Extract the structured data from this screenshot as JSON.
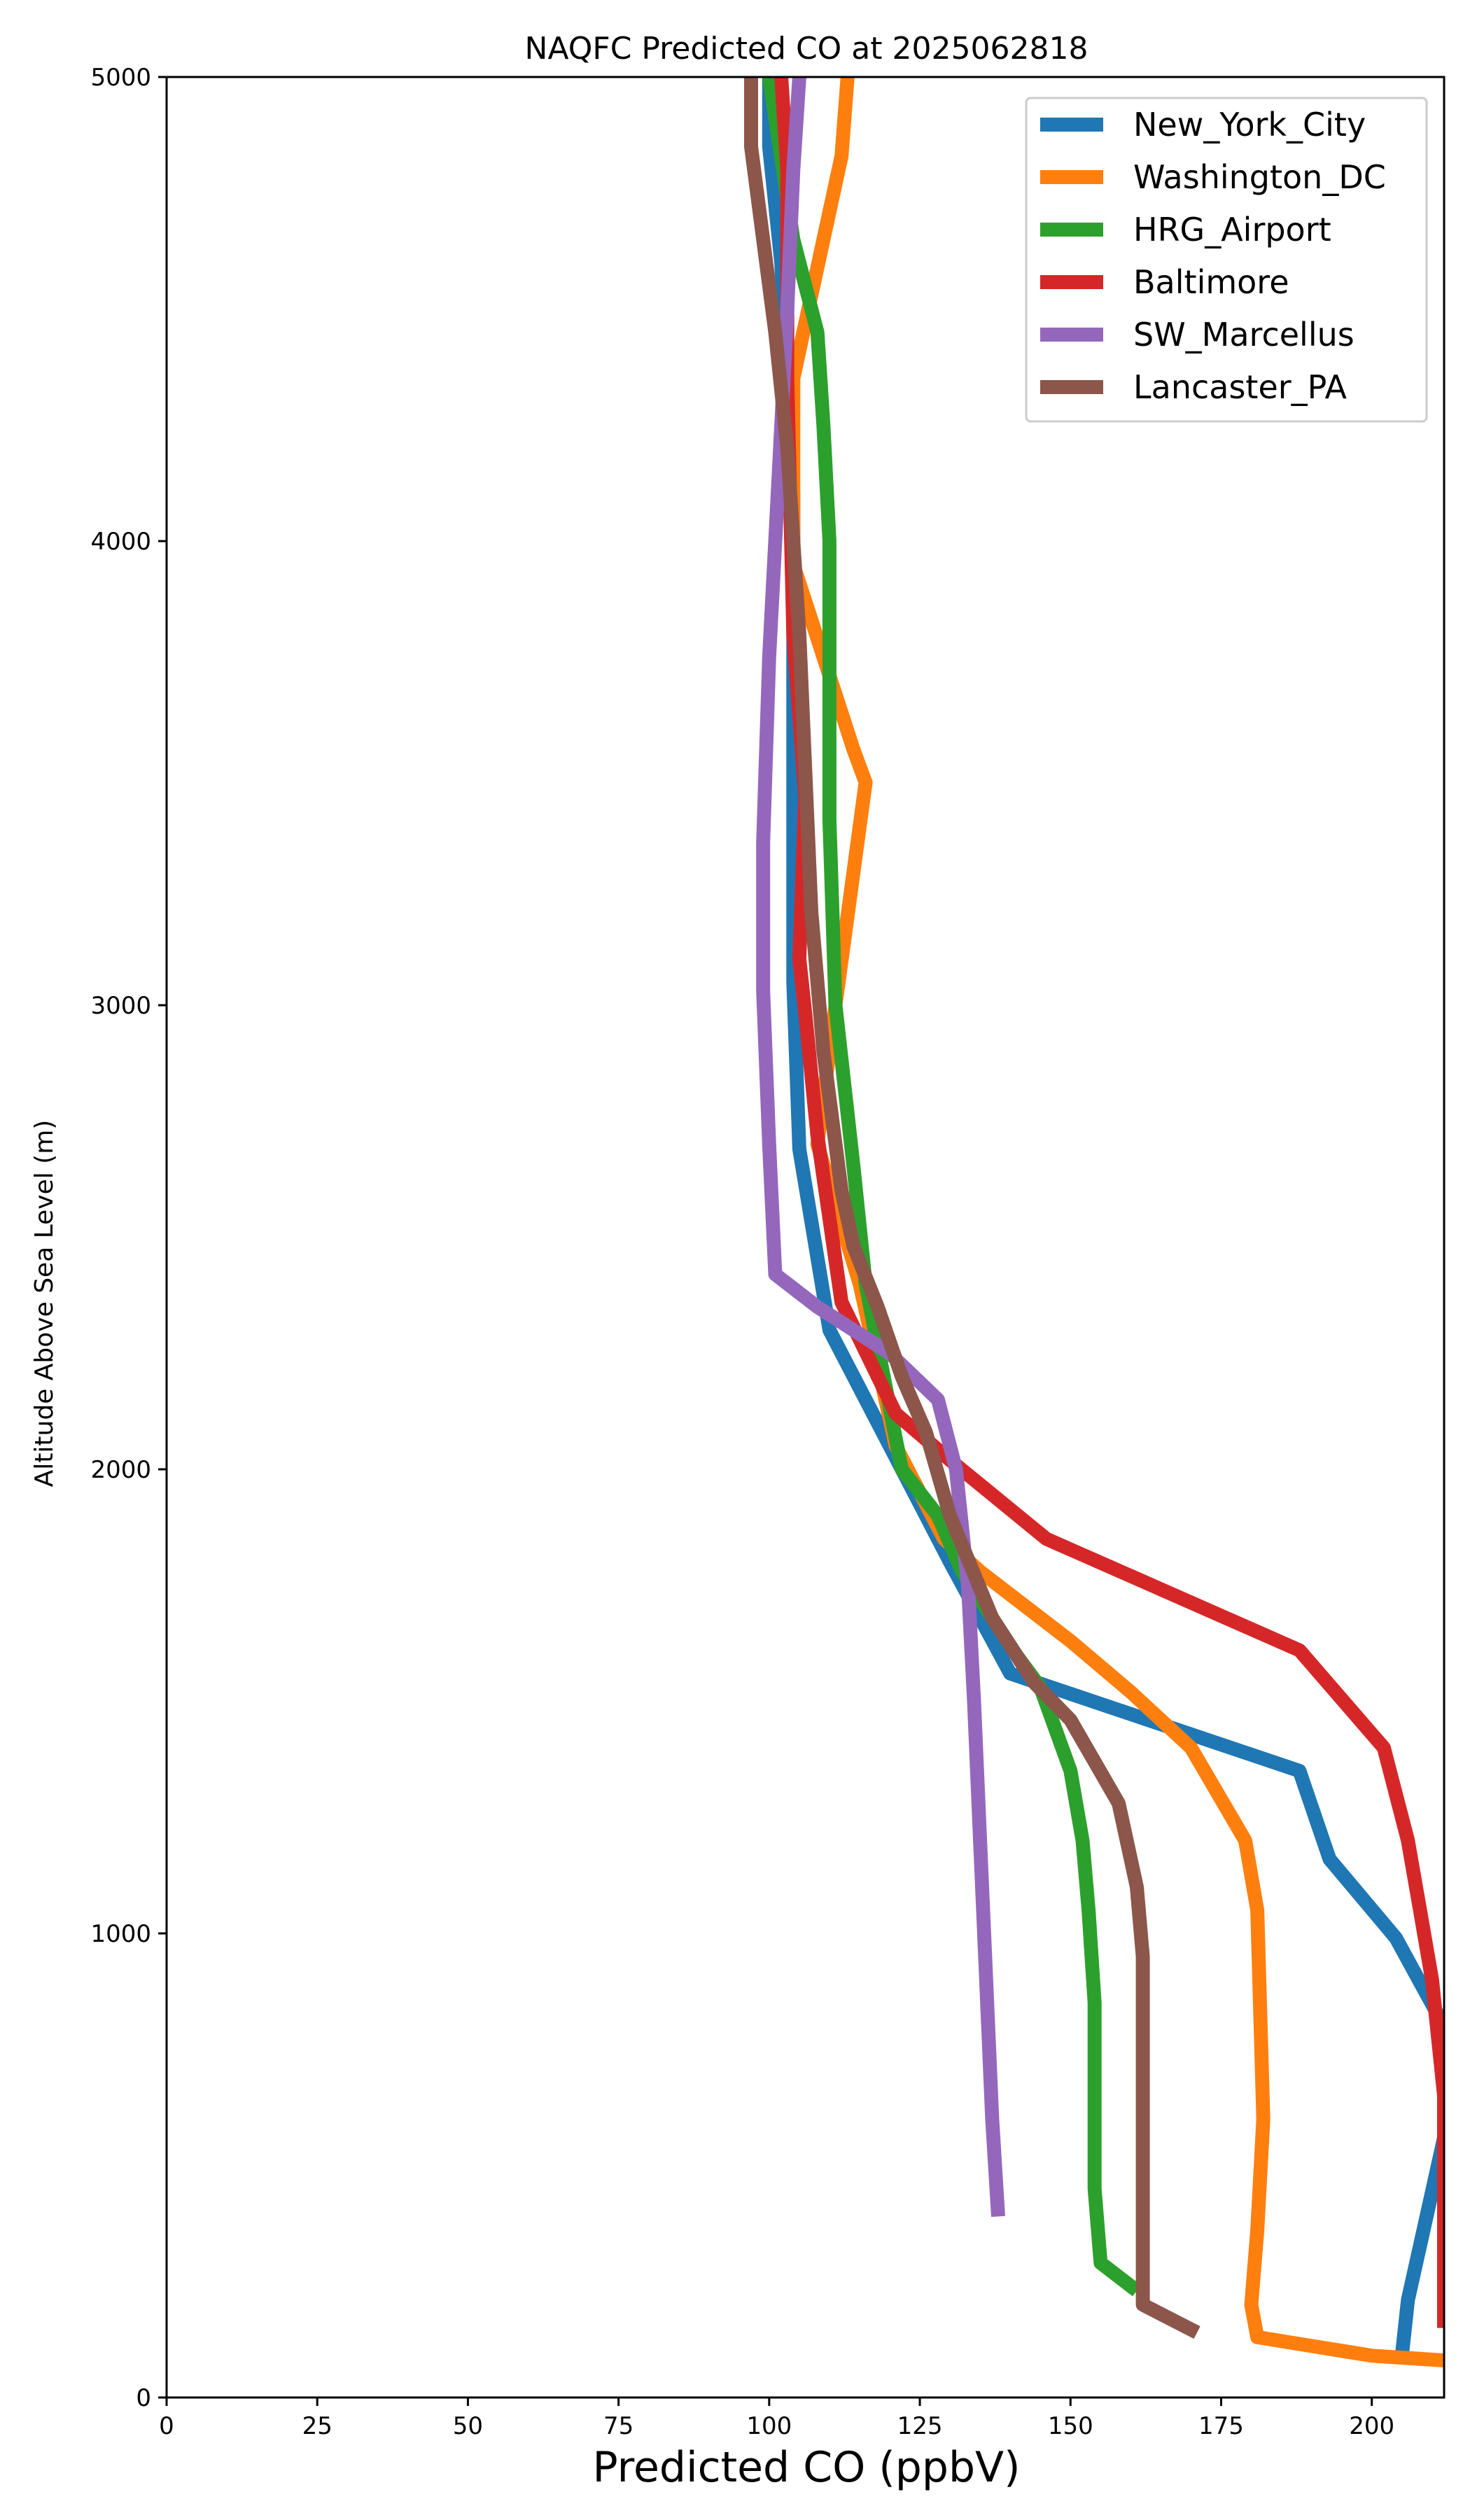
{
  "chart_data": {
    "type": "line",
    "title": "NAQFC Predicted CO at 2025062818",
    "xlabel": "Predicted CO (ppbV)",
    "ylabel": "Altitude Above Sea Level (m)",
    "xlim": [
      0,
      212
    ],
    "ylim": [
      0,
      5000
    ],
    "xticks": [
      "0",
      "25",
      "50",
      "75",
      "100",
      "125",
      "150",
      "175",
      "200"
    ],
    "yticks": [
      "0",
      "1000",
      "2000",
      "3000",
      "4000",
      "5000"
    ],
    "grid": false,
    "legend_position": "top-right",
    "series": [
      {
        "name": "New_York_City",
        "color": "#1f77b4",
        "points": [
          [
            205,
            90
          ],
          [
            206,
            210
          ],
          [
            212,
            560
          ],
          [
            212,
            800
          ],
          [
            204,
            990
          ],
          [
            193,
            1160
          ],
          [
            188,
            1350
          ],
          [
            140,
            1560
          ],
          [
            130,
            1800
          ],
          [
            124,
            1950
          ],
          [
            110,
            2300
          ],
          [
            105,
            2690
          ],
          [
            104,
            3050
          ],
          [
            104,
            3450
          ],
          [
            104,
            4100
          ],
          [
            102,
            4600
          ],
          [
            100,
            4850
          ],
          [
            100,
            5000
          ]
        ]
      },
      {
        "name": "Washington_DC",
        "color": "#ff7f0e",
        "points": [
          [
            212,
            80
          ],
          [
            200,
            90
          ],
          [
            181,
            130
          ],
          [
            180,
            200
          ],
          [
            181,
            360
          ],
          [
            182,
            600
          ],
          [
            181,
            1050
          ],
          [
            179,
            1200
          ],
          [
            170,
            1400
          ],
          [
            160,
            1520
          ],
          [
            150,
            1630
          ],
          [
            135,
            1780
          ],
          [
            129,
            1850
          ],
          [
            125,
            1950
          ],
          [
            121,
            2050
          ],
          [
            115,
            2400
          ],
          [
            108,
            2700
          ],
          [
            111,
            3000
          ],
          [
            116,
            3480
          ],
          [
            114,
            3550
          ],
          [
            104,
            3950
          ],
          [
            104,
            4350
          ],
          [
            112,
            4830
          ],
          [
            113,
            5000
          ]
        ]
      },
      {
        "name": "HRG_Airport",
        "color": "#2ca02c",
        "points": [
          [
            161,
            230
          ],
          [
            155,
            290
          ],
          [
            154,
            450
          ],
          [
            154,
            850
          ],
          [
            153,
            1050
          ],
          [
            152,
            1200
          ],
          [
            150,
            1350
          ],
          [
            145,
            1530
          ],
          [
            141,
            1600
          ],
          [
            132,
            1780
          ],
          [
            128,
            1900
          ],
          [
            122,
            2000
          ],
          [
            119,
            2200
          ],
          [
            116,
            2400
          ],
          [
            114,
            2650
          ],
          [
            111,
            3000
          ],
          [
            110,
            3400
          ],
          [
            110,
            4000
          ],
          [
            109,
            4250
          ],
          [
            108,
            4450
          ],
          [
            104,
            4650
          ],
          [
            100,
            5000
          ]
        ]
      },
      {
        "name": "Baltimore",
        "color": "#d62728",
        "points": [
          [
            212,
            150
          ],
          [
            212,
            650
          ],
          [
            210,
            900
          ],
          [
            208,
            1050
          ],
          [
            206,
            1200
          ],
          [
            202,
            1400
          ],
          [
            188,
            1610
          ],
          [
            146,
            1850
          ],
          [
            130,
            2020
          ],
          [
            121,
            2120
          ],
          [
            112,
            2360
          ],
          [
            108,
            2720
          ],
          [
            106,
            2980
          ],
          [
            105,
            3100
          ],
          [
            106,
            3450
          ],
          [
            104,
            3800
          ],
          [
            103,
            4350
          ],
          [
            103,
            4800
          ],
          [
            102,
            5000
          ]
        ]
      },
      {
        "name": "SW_Marcellus",
        "color": "#9467bd",
        "points": [
          [
            138,
            390
          ],
          [
            137,
            600
          ],
          [
            136,
            900
          ],
          [
            135,
            1200
          ],
          [
            134,
            1500
          ],
          [
            133,
            1750
          ],
          [
            131,
            2000
          ],
          [
            128,
            2150
          ],
          [
            120,
            2250
          ],
          [
            108,
            2350
          ],
          [
            101,
            2420
          ],
          [
            100,
            2700
          ],
          [
            99,
            3030
          ],
          [
            99,
            3350
          ],
          [
            100,
            3750
          ],
          [
            101,
            4000
          ],
          [
            102,
            4250
          ],
          [
            103,
            4500
          ],
          [
            104,
            4800
          ],
          [
            105,
            5000
          ]
        ]
      },
      {
        "name": "Lancaster_PA",
        "color": "#8c564b",
        "points": [
          [
            171,
            140
          ],
          [
            162,
            200
          ],
          [
            162,
            400
          ],
          [
            162,
            700
          ],
          [
            162,
            950
          ],
          [
            161,
            1100
          ],
          [
            158,
            1280
          ],
          [
            150,
            1460
          ],
          [
            144,
            1540
          ],
          [
            137,
            1680
          ],
          [
            130,
            1900
          ],
          [
            126,
            2080
          ],
          [
            122,
            2200
          ],
          [
            118,
            2350
          ],
          [
            114,
            2480
          ],
          [
            112,
            2600
          ],
          [
            109,
            2900
          ],
          [
            107,
            3200
          ],
          [
            106,
            3500
          ],
          [
            105,
            3800
          ],
          [
            104,
            4000
          ],
          [
            103,
            4200
          ],
          [
            101,
            4450
          ],
          [
            99,
            4650
          ],
          [
            97,
            4850
          ],
          [
            97,
            5000
          ]
        ]
      }
    ]
  }
}
